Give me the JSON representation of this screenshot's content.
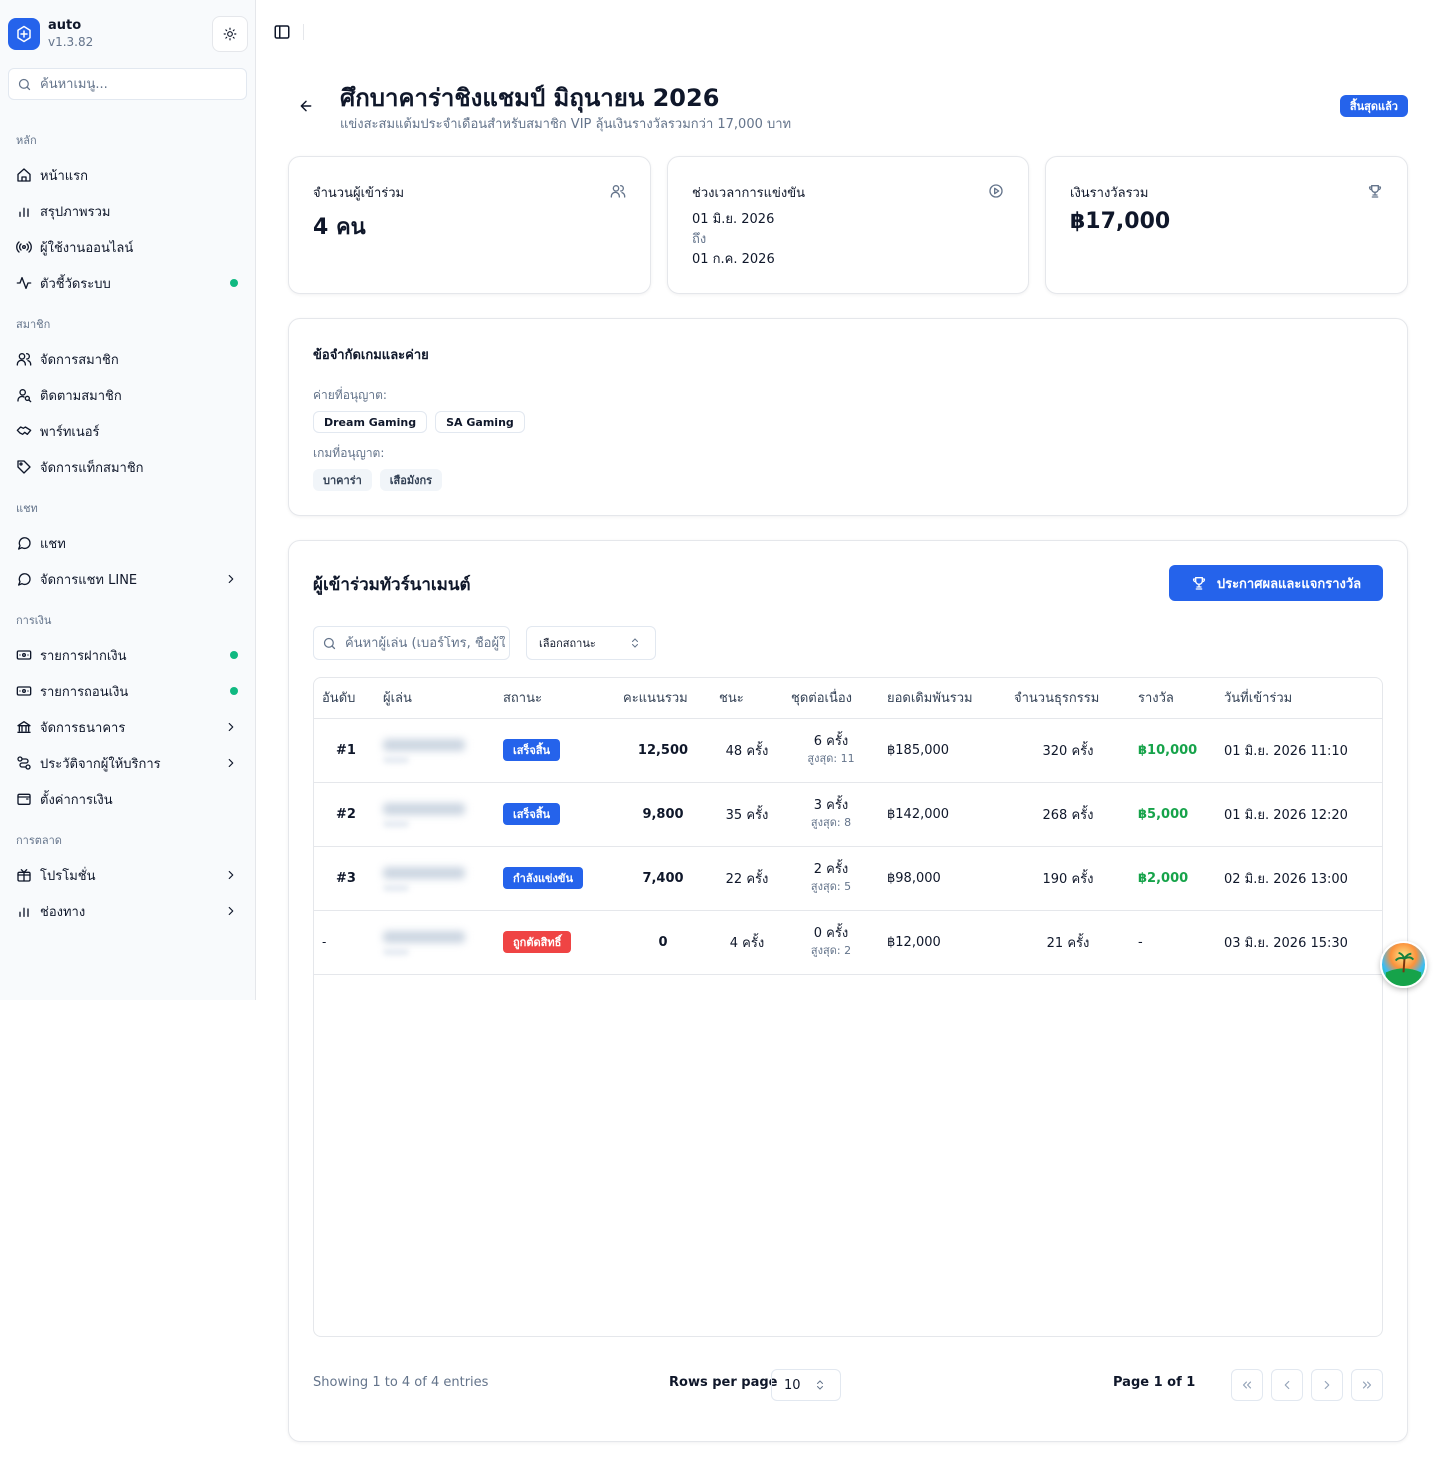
{
  "app": {
    "name": "auto",
    "version": "v1.3.82"
  },
  "menu_search": {
    "placeholder": "ค้นหาเมนู..."
  },
  "sidebar": {
    "groups": [
      {
        "label": "หลัก",
        "items": [
          {
            "label": "หน้าแรก",
            "icon": "home-icon"
          },
          {
            "label": "สรุปภาพรวม",
            "icon": "bar-chart-icon"
          },
          {
            "label": "ผู้ใช้งานออนไลน์",
            "icon": "radio-icon"
          },
          {
            "label": "ตัวชี้วัดระบบ",
            "icon": "activity-icon",
            "dot": true
          }
        ]
      },
      {
        "label": "สมาชิก",
        "items": [
          {
            "label": "จัดการสมาชิก",
            "icon": "users-icon"
          },
          {
            "label": "ติดตามสมาชิก",
            "icon": "user-search-icon"
          },
          {
            "label": "พาร์ทเนอร์",
            "icon": "handshake-icon"
          },
          {
            "label": "จัดการแท็กสมาชิก",
            "icon": "tag-icon"
          }
        ]
      },
      {
        "label": "แชท",
        "items": [
          {
            "label": "แชท",
            "icon": "chat-icon"
          },
          {
            "label": "จัดการแชท LINE",
            "icon": "chat-icon",
            "chevron": true
          }
        ]
      },
      {
        "label": "การเงิน",
        "items": [
          {
            "label": "รายการฝากเงิน",
            "icon": "deposit-icon",
            "dot": true
          },
          {
            "label": "รายการถอนเงิน",
            "icon": "withdraw-icon",
            "dot": true
          },
          {
            "label": "จัดการธนาคาร",
            "icon": "bank-icon",
            "chevron": true
          },
          {
            "label": "ประวัติจากผู้ให้บริการ",
            "icon": "provider-history-icon",
            "chevron": true
          },
          {
            "label": "ตั้งค่าการเงิน",
            "icon": "wallet-icon"
          }
        ]
      },
      {
        "label": "การตลาด",
        "items": [
          {
            "label": "โปรโมชั่น",
            "icon": "promotion-icon",
            "chevron": true
          },
          {
            "label": "ช่องทาง",
            "icon": "bar-chart-icon",
            "chevron": true
          }
        ]
      }
    ]
  },
  "header": {
    "title": "ศึกบาคาร่าชิงแชมป์ มิถุนายน 2026",
    "subtitle": "แข่งสะสมแต้มประจำเดือนสำหรับสมาชิก VIP ลุ้นเงินรางวัลรวมกว่า 17,000 บาท",
    "status": "สิ้นสุดแล้ว"
  },
  "stats": {
    "participants": {
      "title": "จำนวนผู้เข้าร่วม",
      "value": "4 คน",
      "icon": "users-icon"
    },
    "period": {
      "title": "ช่วงเวลาการแข่งขัน",
      "start": "01 มิ.ย. 2026",
      "to": "ถึง",
      "end": "01 ก.ค. 2026",
      "icon": "play-circle-icon"
    },
    "prize": {
      "title": "เงินรางวัลรวม",
      "value": "฿17,000",
      "icon": "trophy-icon"
    }
  },
  "restrictions": {
    "title": "ข้อจำกัดเกมและค่าย",
    "providers_label": "ค่ายที่อนุญาต:",
    "providers": [
      "Dream Gaming",
      "SA Gaming"
    ],
    "games_label": "เกมที่อนุญาต:",
    "games": [
      "บาคาร่า",
      "เสือมังกร"
    ]
  },
  "participants": {
    "title": "ผู้เข้าร่วมทัวร์นาเมนต์",
    "announce_button": "ประกาศผลและแจกรางวัล",
    "search_placeholder": "ค้นหาผู้เล่น (เบอร์โทร, ชื่อผู้ใช้)",
    "status_select": "เลือกสถานะ",
    "columns": [
      "อันดับ",
      "ผู้เล่น",
      "สถานะ",
      "คะแนนรวม",
      "ชนะ",
      "ชุดต่อเนื่อง",
      "ยอดเดิมพันรวม",
      "จำนวนธุรกรรม",
      "รางวัล",
      "วันที่เข้าร่วม"
    ],
    "rows": [
      {
        "rank": "#1",
        "status": "เสร็จสิ้น",
        "status_color": "#2563eb",
        "score": "12,500",
        "wins": "48 ครั้ง",
        "streak": "6 ครั้ง",
        "streak_max": "สูงสุด: 11",
        "bet_total": "฿185,000",
        "transactions": "320 ครั้ง",
        "prize": "฿10,000",
        "joined": "01 มิ.ย. 2026 11:10"
      },
      {
        "rank": "#2",
        "status": "เสร็จสิ้น",
        "status_color": "#2563eb",
        "score": "9,800",
        "wins": "35 ครั้ง",
        "streak": "3 ครั้ง",
        "streak_max": "สูงสุด: 8",
        "bet_total": "฿142,000",
        "transactions": "268 ครั้ง",
        "prize": "฿5,000",
        "joined": "01 มิ.ย. 2026 12:20"
      },
      {
        "rank": "#3",
        "status": "กำลังแข่งขัน",
        "status_color": "#2563eb",
        "score": "7,400",
        "wins": "22 ครั้ง",
        "streak": "2 ครั้ง",
        "streak_max": "สูงสุด: 5",
        "bet_total": "฿98,000",
        "transactions": "190 ครั้ง",
        "prize": "฿2,000",
        "joined": "02 มิ.ย. 2026 13:00"
      },
      {
        "rank": "-",
        "status": "ถูกตัดสิทธิ์",
        "status_color": "#ef4444",
        "score": "0",
        "wins": "4 ครั้ง",
        "streak": "0 ครั้ง",
        "streak_max": "สูงสุด: 2",
        "bet_total": "฿12,000",
        "transactions": "21 ครั้ง",
        "prize": "-",
        "joined": "03 มิ.ย. 2026 15:30"
      }
    ]
  },
  "pagination": {
    "showing": "Showing 1 to 4 of 4 entries",
    "rows_label": "Rows per page",
    "rows_value": "10",
    "page_label": "Page 1 of 1"
  },
  "colors": {
    "primary": "#2563eb",
    "success": "#16a34a",
    "danger": "#ef4444",
    "online_dot": "#10b981"
  }
}
